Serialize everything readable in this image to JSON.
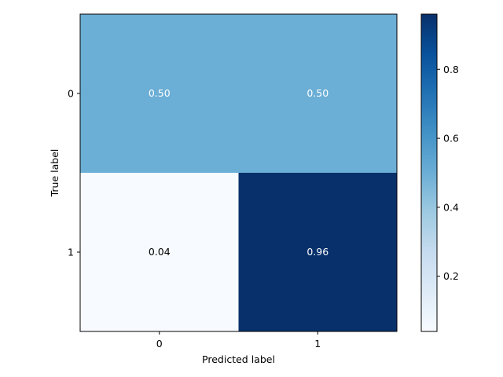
{
  "chart_data": {
    "type": "heatmap",
    "title": "",
    "xlabel": "Predicted label",
    "ylabel": "True label",
    "x_categories": [
      "0",
      "1"
    ],
    "y_categories": [
      "0",
      "1"
    ],
    "values": [
      [
        0.5,
        0.5
      ],
      [
        0.04,
        0.96
      ]
    ],
    "cell_labels": [
      [
        "0.50",
        "0.50"
      ],
      [
        "0.04",
        "0.96"
      ]
    ],
    "colormap": "Blues",
    "color_range": [
      0.04,
      0.96
    ],
    "colorbar": {
      "ticks": [
        0.2,
        0.4,
        0.6,
        0.8
      ],
      "tick_labels": [
        "0.2",
        "0.4",
        "0.6",
        "0.8"
      ]
    },
    "grid": false
  }
}
